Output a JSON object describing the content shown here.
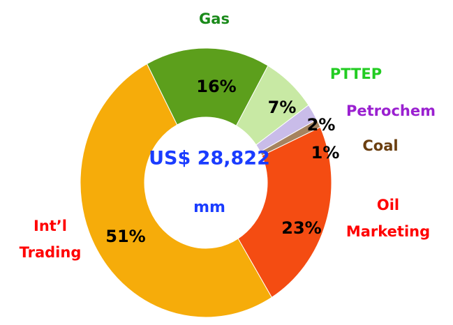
{
  "chart_data": {
    "type": "donut",
    "categories": [
      "Gas",
      "PTTEP",
      "Petrochem",
      "Coal",
      "Oil Marketing",
      "Int’l Trading"
    ],
    "values": [
      16,
      7,
      2,
      1,
      23,
      51
    ],
    "value_labels": [
      "16%",
      "7%",
      "2%",
      "1%",
      "23%",
      "51%"
    ],
    "colors": [
      "#5c9f1c",
      "#c8e9a4",
      "#c9bce9",
      "#a5835f",
      "#f44c12",
      "#f6ac0a"
    ],
    "label_colors": [
      "#1a8a1a",
      "#22cc22",
      "#9a20d0",
      "#6b3f10",
      "#ff0000",
      "#ff0000"
    ],
    "center_text": [
      "US$ 28,822",
      "mm"
    ]
  }
}
